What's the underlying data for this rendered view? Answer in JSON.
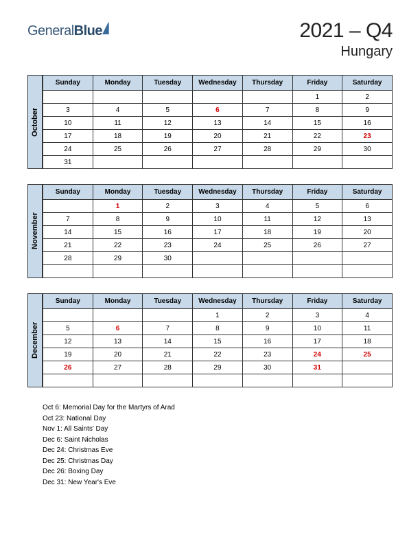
{
  "logo": {
    "text1": "General",
    "text2": "Blue"
  },
  "title": {
    "main": "2021 – Q4",
    "sub": "Hungary"
  },
  "colors": {
    "header_bg": "#c8daea",
    "border": "#333333",
    "holiday": "#d00000",
    "logo_text": "#3a5a7a"
  },
  "day_headers": [
    "Sunday",
    "Monday",
    "Tuesday",
    "Wednesday",
    "Thursday",
    "Friday",
    "Saturday"
  ],
  "months": [
    {
      "name": "October",
      "weeks": [
        [
          "",
          "",
          "",
          "",
          "",
          "1",
          "2"
        ],
        [
          "3",
          "4",
          "5",
          "6",
          "7",
          "8",
          "9"
        ],
        [
          "10",
          "11",
          "12",
          "13",
          "14",
          "15",
          "16"
        ],
        [
          "17",
          "18",
          "19",
          "20",
          "21",
          "22",
          "23"
        ],
        [
          "24",
          "25",
          "26",
          "27",
          "28",
          "29",
          "30"
        ],
        [
          "31",
          "",
          "",
          "",
          "",
          "",
          ""
        ]
      ],
      "holidays": [
        "6",
        "23"
      ]
    },
    {
      "name": "November",
      "weeks": [
        [
          "",
          "1",
          "2",
          "3",
          "4",
          "5",
          "6"
        ],
        [
          "7",
          "8",
          "9",
          "10",
          "11",
          "12",
          "13"
        ],
        [
          "14",
          "15",
          "16",
          "17",
          "18",
          "19",
          "20"
        ],
        [
          "21",
          "22",
          "23",
          "24",
          "25",
          "26",
          "27"
        ],
        [
          "28",
          "29",
          "30",
          "",
          "",
          "",
          ""
        ],
        [
          "",
          "",
          "",
          "",
          "",
          "",
          ""
        ]
      ],
      "holidays": [
        "1"
      ]
    },
    {
      "name": "December",
      "weeks": [
        [
          "",
          "",
          "",
          "1",
          "2",
          "3",
          "4"
        ],
        [
          "5",
          "6",
          "7",
          "8",
          "9",
          "10",
          "11"
        ],
        [
          "12",
          "13",
          "14",
          "15",
          "16",
          "17",
          "18"
        ],
        [
          "19",
          "20",
          "21",
          "22",
          "23",
          "24",
          "25"
        ],
        [
          "26",
          "27",
          "28",
          "29",
          "30",
          "31",
          ""
        ],
        [
          "",
          "",
          "",
          "",
          "",
          "",
          ""
        ]
      ],
      "holidays": [
        "6",
        "24",
        "25",
        "26",
        "31"
      ]
    }
  ],
  "holiday_list": [
    "Oct 6: Memorial Day for the Martyrs of Arad",
    "Oct 23: National Day",
    "Nov 1: All Saints' Day",
    "Dec 6: Saint Nicholas",
    "Dec 24: Christmas Eve",
    "Dec 25: Christmas Day",
    "Dec 26: Boxing Day",
    "Dec 31: New Year's Eve"
  ]
}
